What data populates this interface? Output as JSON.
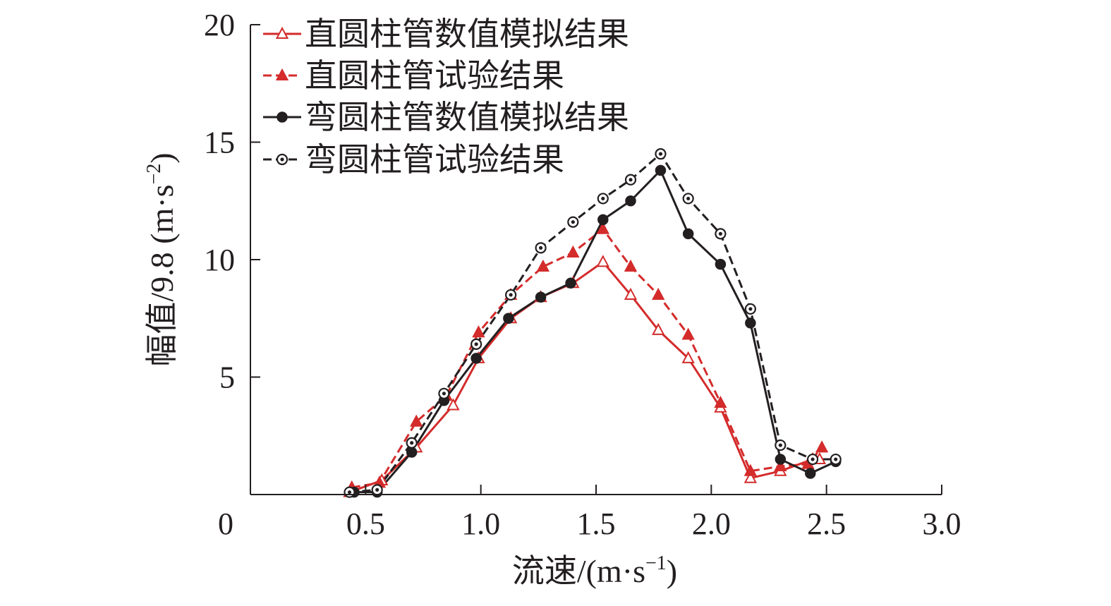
{
  "chart_data": {
    "type": "line",
    "title": "",
    "xlabel": "流速/(m·s",
    "xlabel_sup": "−1",
    "xlabel_tail": ")",
    "ylabel": "幅值/9.8 (m·s",
    "ylabel_sup": "−2",
    "ylabel_tail": ")",
    "xlim": [
      0,
      3.0
    ],
    "ylim": [
      0,
      20
    ],
    "xticks": [
      {
        "value": 0,
        "label": "0"
      },
      {
        "value": 0.5,
        "label": "0.5"
      },
      {
        "value": 1.0,
        "label": "1.0"
      },
      {
        "value": 1.5,
        "label": "1.5"
      },
      {
        "value": 2.0,
        "label": "2.0"
      },
      {
        "value": 2.5,
        "label": "2.5"
      },
      {
        "value": 3.0,
        "label": "3.0"
      }
    ],
    "yticks": [
      {
        "value": 5,
        "label": "5"
      },
      {
        "value": 10,
        "label": "10"
      },
      {
        "value": 15,
        "label": "15"
      },
      {
        "value": 20,
        "label": "20"
      }
    ],
    "grid": false,
    "legend_position": "top-left",
    "series": [
      {
        "name": "直圆柱管数值模拟结果",
        "color": "#d42b2b",
        "line_style": "solid",
        "marker": "open-triangle",
        "x": [
          0.43,
          0.57,
          0.72,
          0.88,
          0.99,
          1.13,
          1.26,
          1.4,
          1.53,
          1.65,
          1.77,
          1.9,
          2.04,
          2.17,
          2.3,
          2.44,
          2.47
        ],
        "y": [
          0.1,
          0.6,
          2.0,
          3.8,
          5.8,
          7.5,
          8.4,
          9.0,
          9.9,
          8.5,
          7.0,
          5.8,
          3.7,
          0.7,
          1.0,
          1.5,
          1.5
        ]
      },
      {
        "name": "直圆柱管试验结果",
        "color": "#d42b2b",
        "line_style": "dashed",
        "marker": "filled-triangle",
        "x": [
          0.44,
          0.56,
          0.72,
          0.85,
          0.99,
          1.13,
          1.27,
          1.4,
          1.53,
          1.65,
          1.77,
          1.9,
          2.04,
          2.17,
          2.3,
          2.42,
          2.48
        ],
        "y": [
          0.3,
          0.5,
          3.1,
          4.2,
          6.9,
          8.5,
          9.7,
          10.3,
          11.3,
          9.7,
          8.5,
          6.8,
          3.9,
          1.0,
          1.2,
          1.3,
          2.0
        ]
      },
      {
        "name": "弯圆柱管数值模拟结果",
        "color": "#231f20",
        "line_style": "solid",
        "marker": "filled-circle",
        "x": [
          0.45,
          0.55,
          0.7,
          0.84,
          0.98,
          1.12,
          1.26,
          1.39,
          1.53,
          1.65,
          1.78,
          1.9,
          2.04,
          2.17,
          2.3,
          2.43,
          2.54
        ],
        "y": [
          0.1,
          0.1,
          1.8,
          4.0,
          5.8,
          7.5,
          8.4,
          9.0,
          11.7,
          12.5,
          13.8,
          11.1,
          9.8,
          7.3,
          1.5,
          0.9,
          1.4
        ]
      },
      {
        "name": "弯圆柱管试验结果",
        "color": "#231f20",
        "line_style": "dashed",
        "marker": "open-circle-dot",
        "x": [
          0.43,
          0.55,
          0.7,
          0.84,
          0.98,
          1.13,
          1.26,
          1.4,
          1.53,
          1.65,
          1.78,
          1.9,
          2.04,
          2.17,
          2.3,
          2.44,
          2.54
        ],
        "y": [
          0.1,
          0.2,
          2.2,
          4.3,
          6.4,
          8.5,
          10.5,
          11.6,
          12.6,
          13.4,
          14.5,
          12.6,
          11.1,
          7.9,
          2.1,
          1.5,
          1.5
        ]
      }
    ]
  }
}
